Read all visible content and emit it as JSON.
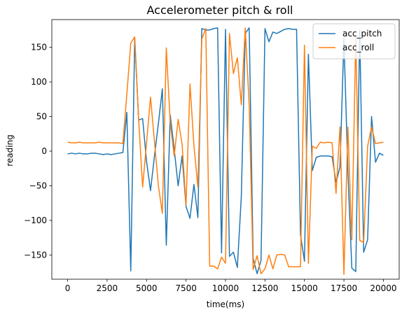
{
  "chart_data": {
    "type": "line",
    "title": "Accelerometer pitch & roll",
    "xlabel": "time(ms)",
    "ylabel": "reading",
    "xlim": [
      -1000,
      21000
    ],
    "ylim": [
      -185,
      190
    ],
    "xticks": [
      0,
      2500,
      5000,
      7500,
      10000,
      12500,
      15000,
      17500,
      20000
    ],
    "yticks": [
      -150,
      -100,
      -50,
      0,
      50,
      100,
      150
    ],
    "grid": false,
    "legend": "top-right",
    "series": [
      {
        "name": "acc_pitch",
        "color": "#1f77b4",
        "x": [
          0,
          250,
          500,
          750,
          1000,
          1250,
          1500,
          1750,
          2000,
          2250,
          2500,
          2750,
          3000,
          3250,
          3500,
          3750,
          4000,
          4250,
          4500,
          4750,
          5000,
          5250,
          5500,
          5750,
          6000,
          6250,
          6500,
          6750,
          7000,
          7250,
          7500,
          7750,
          8000,
          8250,
          8500,
          8750,
          9000,
          9250,
          9500,
          9750,
          10000,
          10250,
          10500,
          10750,
          11000,
          11250,
          11500,
          11750,
          12000,
          12250,
          12500,
          12750,
          13000,
          13250,
          13500,
          13750,
          14000,
          14250,
          14500,
          14750,
          15000,
          15250,
          15500,
          15750,
          16000,
          16250,
          16500,
          16750,
          17000,
          17250,
          17500,
          17750,
          18000,
          18250,
          18500,
          18750,
          19000,
          19250,
          19500,
          19750,
          20000
        ],
        "y": [
          -4,
          -3,
          -4,
          -3,
          -4,
          -4,
          -3,
          -3,
          -4,
          -5,
          -4,
          -5,
          -4,
          -3,
          -2,
          56,
          -173,
          163,
          45,
          47,
          -15,
          -57,
          -7,
          40,
          90,
          -136,
          52,
          3,
          -50,
          -7,
          -80,
          -97,
          -48,
          -96,
          177,
          175,
          175,
          177,
          178,
          -147,
          176,
          -152,
          -146,
          -168,
          -66,
          170,
          178,
          -155,
          -177,
          -158,
          177,
          158,
          172,
          170,
          173,
          176,
          177,
          176,
          176,
          -121,
          -159,
          140,
          -28,
          -9,
          -7,
          -7,
          -7,
          -8,
          -45,
          -23,
          162,
          -30,
          -169,
          -174,
          175,
          -146,
          -128,
          50,
          -16,
          -3,
          -6
        ]
      },
      {
        "name": "acc_roll",
        "color": "#ff7f0e",
        "x": [
          0,
          250,
          500,
          750,
          1000,
          1250,
          1500,
          1750,
          2000,
          2250,
          2500,
          2750,
          3000,
          3250,
          3500,
          3750,
          4000,
          4250,
          4500,
          4750,
          5000,
          5250,
          5500,
          5750,
          6000,
          6250,
          6500,
          6750,
          7000,
          7250,
          7500,
          7750,
          8000,
          8250,
          8500,
          8750,
          9000,
          9250,
          9500,
          9750,
          10000,
          10250,
          10500,
          10750,
          11000,
          11250,
          11500,
          11750,
          12000,
          12250,
          12500,
          12750,
          13000,
          13250,
          13500,
          13750,
          14000,
          14250,
          14500,
          14750,
          15000,
          15250,
          15500,
          15750,
          16000,
          16250,
          16500,
          16750,
          17000,
          17250,
          17500,
          17750,
          18000,
          18250,
          18500,
          18750,
          19000,
          19250,
          19500,
          19750,
          20000
        ],
        "y": [
          13,
          12,
          12,
          13,
          12,
          12,
          12,
          12,
          13,
          12,
          12,
          12,
          12,
          12,
          11,
          82,
          156,
          165,
          45,
          -52,
          12,
          78,
          14,
          -50,
          -90,
          149,
          41,
          -7,
          46,
          10,
          -78,
          97,
          8,
          -52,
          162,
          177,
          -166,
          -166,
          -170,
          -153,
          -162,
          170,
          112,
          135,
          67,
          178,
          66,
          -171,
          -151,
          -177,
          -170,
          -150,
          -170,
          -150,
          -149,
          -150,
          -167,
          -167,
          -167,
          -167,
          153,
          -162,
          7,
          4,
          13,
          12,
          13,
          12,
          -61,
          35,
          -178,
          35,
          -128,
          165,
          -129,
          -132,
          7,
          35,
          11,
          12,
          13
        ]
      }
    ]
  }
}
